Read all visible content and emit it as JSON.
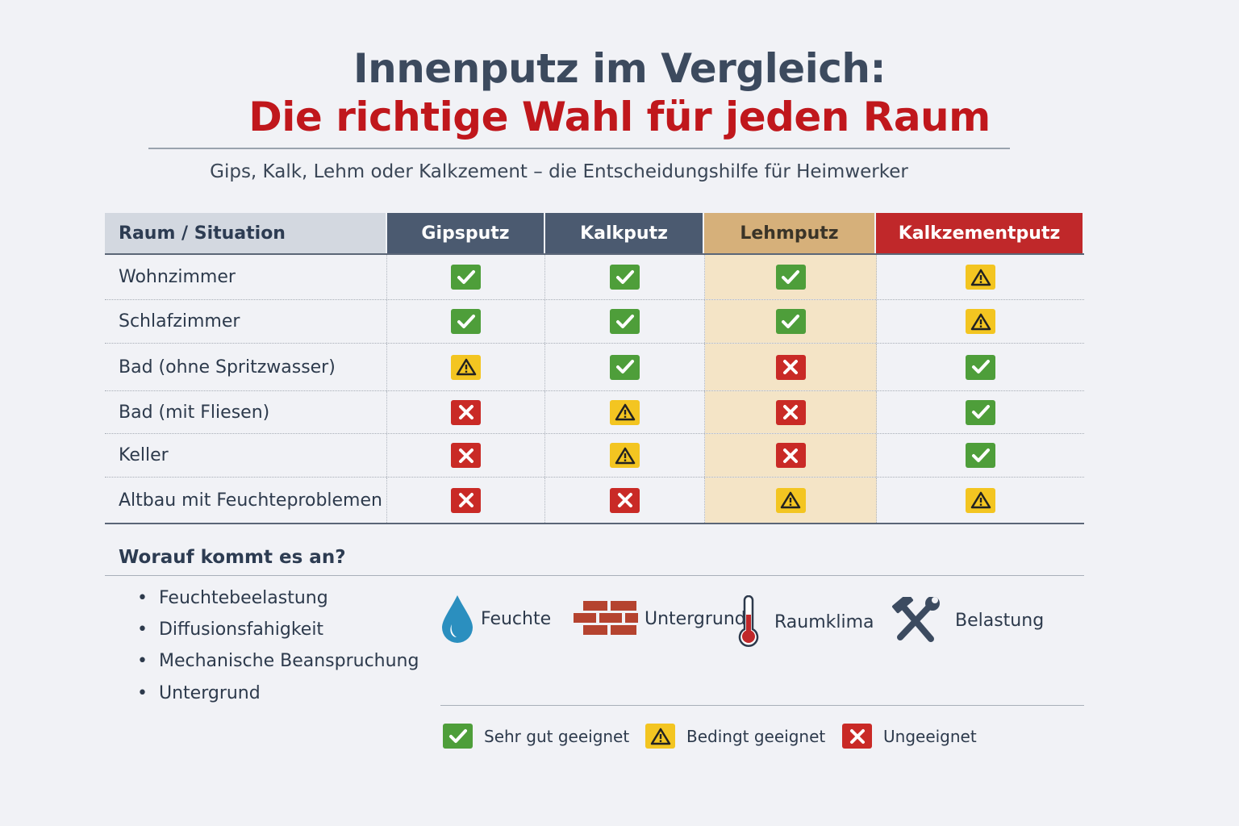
{
  "title_line1": "Innenputz im Vergleich:",
  "title_line2": "Die richtige Wahl für jeden Raum",
  "subtitle": "Gips, Kalk, Lehm oder Kalkzement – die Entscheidungshilfe für Heimwerker",
  "table": {
    "headers": [
      "Raum / Situation",
      "Gipsputz",
      "Kalkputz",
      "Lehmputz",
      "Kalkzementputz"
    ],
    "header_colors": [
      "#d3d8e0",
      "#4b5a70",
      "#4b5a70",
      "#d6b07a",
      "#c0282a"
    ],
    "rows": [
      {
        "label": "Wohnzimmer",
        "values": [
          "ok",
          "ok",
          "ok",
          "warn"
        ]
      },
      {
        "label": "Schlafzimmer",
        "values": [
          "ok",
          "ok",
          "ok",
          "warn"
        ]
      },
      {
        "label": "Bad (ohne Spritzwasser)",
        "values": [
          "warn",
          "ok",
          "no",
          "ok"
        ]
      },
      {
        "label": "Bad (mit Fliesen)",
        "values": [
          "no",
          "warn",
          "no",
          "ok"
        ]
      },
      {
        "label": "Keller",
        "values": [
          "no",
          "warn",
          "no",
          "ok"
        ]
      },
      {
        "label": "Altbau mit Feuchteproblemen",
        "values": [
          "no",
          "no",
          "warn",
          "warn"
        ]
      }
    ]
  },
  "factors": {
    "title": "Worauf kommt es an?",
    "bullets": [
      "Feuchtebeelastung",
      "Diffusionsfahigkeit",
      "Mechanische Beanspruchung",
      "Untergrund"
    ],
    "icons": [
      {
        "icon": "water-drop-icon",
        "label": "Feuchte"
      },
      {
        "icon": "brick-wall-icon",
        "label": "Untergrund"
      },
      {
        "icon": "thermometer-icon",
        "label": "Raumklima"
      },
      {
        "icon": "hammer-wrench-icon",
        "label": "Belastung"
      }
    ]
  },
  "legend": [
    {
      "status": "ok",
      "label": "Sehr gut geeignet"
    },
    {
      "status": "warn",
      "label": "Bedingt geeignet"
    },
    {
      "status": "no",
      "label": "Ungeeignet"
    }
  ],
  "colors": {
    "ok": "#4e9e3a",
    "warn": "#f3c521",
    "no": "#c92a26",
    "title_red": "#c0171c"
  }
}
